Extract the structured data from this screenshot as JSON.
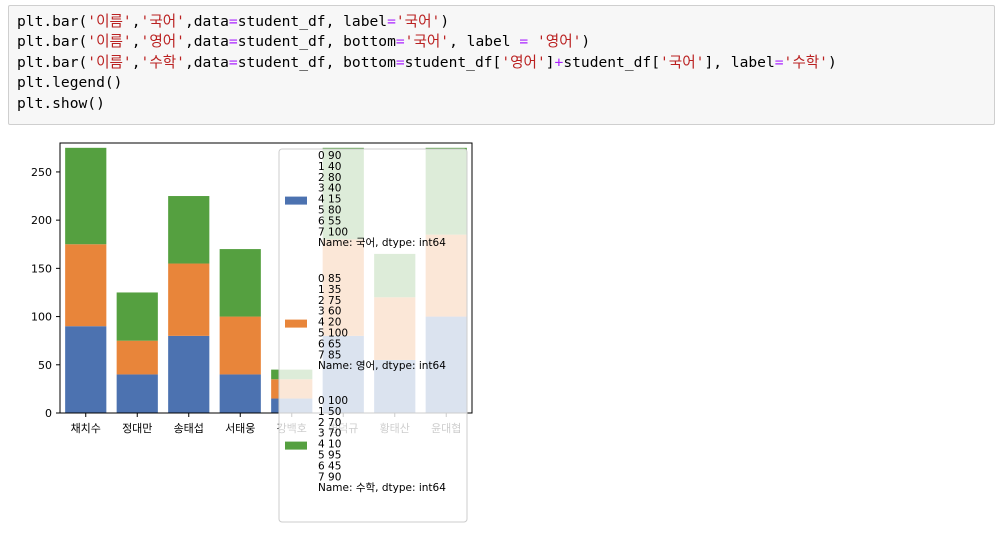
{
  "code": {
    "lines": [
      [
        {
          "t": "plt.bar("
        },
        {
          "t": "'이름'",
          "c": "str"
        },
        {
          "t": ","
        },
        {
          "t": "'국어'",
          "c": "str"
        },
        {
          "t": ",data"
        },
        {
          "t": "=",
          "c": "op"
        },
        {
          "t": "student_df, label"
        },
        {
          "t": "=",
          "c": "op"
        },
        {
          "t": "'국어'",
          "c": "str"
        },
        {
          "t": ")"
        }
      ],
      [
        {
          "t": "plt.bar("
        },
        {
          "t": "'이름'",
          "c": "str"
        },
        {
          "t": ","
        },
        {
          "t": "'영어'",
          "c": "str"
        },
        {
          "t": ",data"
        },
        {
          "t": "=",
          "c": "op"
        },
        {
          "t": "student_df, bottom"
        },
        {
          "t": "=",
          "c": "op"
        },
        {
          "t": "'국어'",
          "c": "str"
        },
        {
          "t": ", label "
        },
        {
          "t": "=",
          "c": "op"
        },
        {
          "t": " "
        },
        {
          "t": "'영어'",
          "c": "str"
        },
        {
          "t": ")"
        }
      ],
      [
        {
          "t": "plt.bar("
        },
        {
          "t": "'이름'",
          "c": "str"
        },
        {
          "t": ","
        },
        {
          "t": "'수학'",
          "c": "str"
        },
        {
          "t": ",data"
        },
        {
          "t": "=",
          "c": "op"
        },
        {
          "t": "student_df, bottom"
        },
        {
          "t": "=",
          "c": "op"
        },
        {
          "t": "student_df["
        },
        {
          "t": "'영어'",
          "c": "str"
        },
        {
          "t": "]"
        },
        {
          "t": "+",
          "c": "op"
        },
        {
          "t": "student_df["
        },
        {
          "t": "'국어'",
          "c": "str"
        },
        {
          "t": "], label"
        },
        {
          "t": "=",
          "c": "op"
        },
        {
          "t": "'수학'",
          "c": "str"
        },
        {
          "t": ")"
        }
      ],
      [
        {
          "t": "plt.legend()"
        }
      ],
      [
        {
          "t": "plt.show()"
        }
      ]
    ]
  },
  "chart_data": {
    "type": "bar",
    "stacked": true,
    "categories": [
      "채치수",
      "정대만",
      "송태섭",
      "서태웅",
      "강백호",
      "변덕규",
      "황태산",
      "윤대협"
    ],
    "series": [
      {
        "color": "#4c72b0",
        "values": [
          90,
          40,
          80,
          40,
          15,
          80,
          55,
          100
        ]
      },
      {
        "color": "#e8853a",
        "values": [
          85,
          35,
          75,
          60,
          20,
          100,
          65,
          85
        ]
      },
      {
        "color": "#55a040",
        "values": [
          100,
          50,
          70,
          70,
          10,
          95,
          45,
          90
        ]
      }
    ],
    "ylim": [
      0,
      280
    ],
    "yticks": [
      0,
      50,
      100,
      150,
      200,
      250
    ],
    "legend": {
      "placement": "overlapping-plot",
      "entries": [
        {
          "lines": [
            "0     90",
            "1     40",
            "2     80",
            "3     40",
            "4     15",
            "5     80",
            "6     55",
            "7     100",
            "Name: 국어, dtype: int64"
          ]
        },
        {
          "lines": [
            "0     85",
            "1     35",
            "2     75",
            "3     60",
            "4     20",
            "5     100",
            "6     65",
            "7     85",
            "Name: 영어, dtype: int64"
          ]
        },
        {
          "lines": [
            "0     100",
            "1     50",
            "2     70",
            "3     70",
            "4     10",
            "5     95",
            "6     45",
            "7     90",
            "Name: 수학, dtype: int64"
          ]
        }
      ]
    }
  }
}
